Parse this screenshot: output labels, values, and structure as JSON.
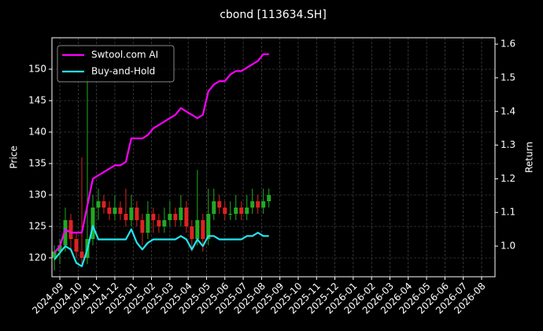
{
  "chart_data": {
    "type": "candlestick",
    "title": "cbond [113634.SH]",
    "ylabel": "Price",
    "y2label": "Return",
    "xlim": [
      -0.43,
      23.73
    ],
    "ylim": [
      117,
      155
    ],
    "y2lim": [
      0.909,
      1.619
    ],
    "xticks": [
      {
        "value": 0,
        "label": "2024-09"
      },
      {
        "value": 1,
        "label": "2024-10"
      },
      {
        "value": 2,
        "label": "2024-11"
      },
      {
        "value": 3,
        "label": "2024-12"
      },
      {
        "value": 4,
        "label": "2025-01"
      },
      {
        "value": 5,
        "label": "2025-02"
      },
      {
        "value": 6,
        "label": "2025-03"
      },
      {
        "value": 7,
        "label": "2025-04"
      },
      {
        "value": 8,
        "label": "2025-05"
      },
      {
        "value": 9,
        "label": "2025-06"
      },
      {
        "value": 10,
        "label": "2025-07"
      },
      {
        "value": 11,
        "label": "2025-08"
      },
      {
        "value": 12,
        "label": "2025-09"
      },
      {
        "value": 13,
        "label": "2025-10"
      },
      {
        "value": 14,
        "label": "2025-11"
      },
      {
        "value": 15,
        "label": "2025-12"
      },
      {
        "value": 16,
        "label": "2026-01"
      },
      {
        "value": 17,
        "label": "2026-02"
      },
      {
        "value": 18,
        "label": "2026-03"
      },
      {
        "value": 19,
        "label": "2026-04"
      },
      {
        "value": 20,
        "label": "2026-05"
      },
      {
        "value": 21,
        "label": "2026-06"
      },
      {
        "value": 22,
        "label": "2026-07"
      },
      {
        "value": 23,
        "label": "2026-08"
      }
    ],
    "yticks": [
      120,
      125,
      130,
      135,
      140,
      145,
      150
    ],
    "y2ticks": [
      {
        "value": 1,
        "label": "1.0"
      },
      1.1,
      1.2,
      1.3,
      1.4,
      1.5,
      1.6
    ],
    "grid": true,
    "legend": "upper left",
    "up_color": "#22aa22",
    "down_color": "#dd2222",
    "candles": {
      "x": [
        -0.3,
        0,
        0.3,
        0.6,
        0.9,
        1.2,
        1.5,
        1.8,
        2.1,
        2.4,
        2.7,
        3,
        3.3,
        3.6,
        3.9,
        4.2,
        4.5,
        4.8,
        5.1,
        5.4,
        5.7,
        6,
        6.3,
        6.6,
        6.9,
        7.2,
        7.5,
        7.8,
        8.1,
        8.4,
        8.7,
        9,
        9.3,
        9.6,
        9.9,
        10.2,
        10.5,
        10.8,
        11.1,
        11.4
      ],
      "open": [
        120,
        121,
        122,
        126,
        123,
        121,
        120,
        123,
        128,
        129,
        128,
        127,
        128,
        127,
        126,
        128,
        126,
        124,
        127,
        126,
        125,
        126,
        127,
        126,
        128,
        125,
        123,
        126,
        123,
        127,
        129,
        128,
        127,
        127,
        128,
        127,
        128,
        129,
        128,
        129
      ],
      "high": [
        122,
        123,
        128,
        127,
        124,
        136,
        149,
        130,
        131,
        130,
        129,
        130,
        129,
        131,
        130,
        129,
        127,
        129,
        128,
        127,
        128,
        129,
        128,
        130,
        129,
        126,
        134,
        127,
        131,
        131,
        130,
        129,
        129,
        130,
        129,
        130,
        131,
        130,
        131,
        131
      ],
      "low": [
        118,
        119,
        121,
        121,
        120,
        119,
        119,
        122,
        126,
        127,
        126,
        126,
        126,
        125,
        125,
        125,
        122,
        123,
        124,
        124,
        124,
        125,
        125,
        125,
        124,
        121,
        122,
        121,
        122,
        126,
        127,
        126,
        126,
        126,
        126,
        126,
        127,
        127,
        127,
        128
      ],
      "close": [
        121,
        122,
        126,
        123,
        121,
        120,
        123,
        128,
        129,
        128,
        127,
        128,
        127,
        126,
        128,
        126,
        124,
        127,
        126,
        125,
        126,
        127,
        126,
        128,
        125,
        123,
        126,
        123,
        127,
        129,
        128,
        127,
        127,
        128,
        127,
        128,
        129,
        128,
        129,
        130
      ]
    },
    "series": [
      {
        "name": "Swtool.com AI",
        "color": "#ff00ff",
        "axis": "y2",
        "x": [
          -0.3,
          0,
          0.3,
          0.6,
          0.9,
          1.2,
          1.5,
          1.8,
          2.1,
          2.4,
          2.7,
          3,
          3.3,
          3.6,
          3.9,
          4.2,
          4.5,
          4.8,
          5.1,
          5.4,
          5.7,
          6,
          6.3,
          6.6,
          6.9,
          7.2,
          7.5,
          7.8,
          8.1,
          8.4,
          8.7,
          9,
          9.3,
          9.6,
          9.9,
          10.2,
          10.5,
          10.8,
          11.1,
          11.4
        ],
        "values": [
          0.98,
          1.0,
          1.05,
          1.04,
          1.04,
          1.04,
          1.12,
          1.2,
          1.21,
          1.22,
          1.23,
          1.24,
          1.24,
          1.25,
          1.32,
          1.32,
          1.32,
          1.33,
          1.35,
          1.36,
          1.37,
          1.38,
          1.39,
          1.41,
          1.4,
          1.39,
          1.38,
          1.39,
          1.46,
          1.48,
          1.49,
          1.49,
          1.51,
          1.52,
          1.52,
          1.53,
          1.54,
          1.55,
          1.57,
          1.57
        ]
      },
      {
        "name": "Buy-and-Hold",
        "color": "#22e5f0",
        "axis": "y2",
        "x": [
          -0.3,
          0,
          0.3,
          0.6,
          0.9,
          1.2,
          1.5,
          1.8,
          2.1,
          2.4,
          2.7,
          3,
          3.3,
          3.6,
          3.9,
          4.2,
          4.5,
          4.8,
          5.1,
          5.4,
          5.7,
          6,
          6.3,
          6.6,
          6.9,
          7.2,
          7.5,
          7.8,
          8.1,
          8.4,
          8.7,
          9,
          9.3,
          9.6,
          9.9,
          10.2,
          10.5,
          10.8,
          11.1,
          11.4
        ],
        "values": [
          0.96,
          0.98,
          1.0,
          0.99,
          0.95,
          0.94,
          0.99,
          1.06,
          1.02,
          1.02,
          1.02,
          1.02,
          1.02,
          1.02,
          1.05,
          1.01,
          0.99,
          1.01,
          1.02,
          1.02,
          1.02,
          1.02,
          1.02,
          1.03,
          1.02,
          0.99,
          1.02,
          1.0,
          1.03,
          1.03,
          1.02,
          1.02,
          1.02,
          1.02,
          1.02,
          1.03,
          1.03,
          1.04,
          1.03,
          1.03
        ]
      }
    ]
  }
}
